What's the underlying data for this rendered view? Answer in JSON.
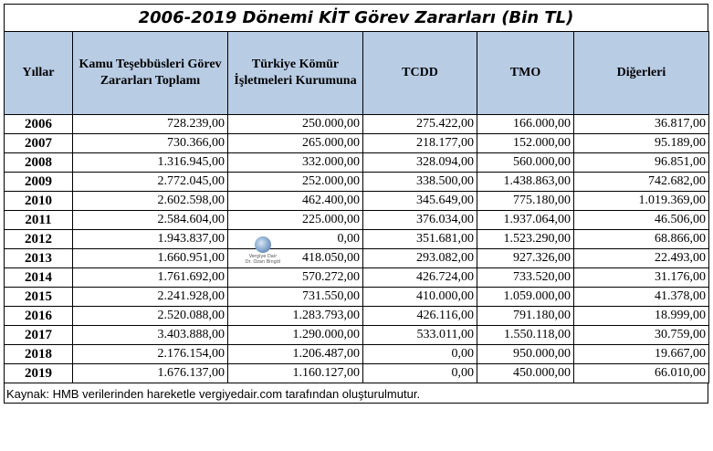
{
  "title": "2006-2019 Dönemi KİT Görev Zararları (Bin TL)",
  "headers": [
    "Yıllar",
    "Kamu Teşebbüsleri Görev Zararları Toplamı",
    "Türkiye Kömür İşletmeleri Kurumuna",
    "TCDD",
    "TMO",
    "Diğerleri"
  ],
  "rows": [
    [
      "2006",
      "728.239,00",
      "250.000,00",
      "275.422,00",
      "166.000,00",
      "36.817,00"
    ],
    [
      "2007",
      "730.366,00",
      "265.000,00",
      "218.177,00",
      "152.000,00",
      "95.189,00"
    ],
    [
      "2008",
      "1.316.945,00",
      "332.000,00",
      "328.094,00",
      "560.000,00",
      "96.851,00"
    ],
    [
      "2009",
      "2.772.045,00",
      "252.000,00",
      "338.500,00",
      "1.438.863,00",
      "742.682,00"
    ],
    [
      "2010",
      "2.602.598,00",
      "462.400,00",
      "345.649,00",
      "775.180,00",
      "1.019.369,00"
    ],
    [
      "2011",
      "2.584.604,00",
      "225.000,00",
      "376.034,00",
      "1.937.064,00",
      "46.506,00"
    ],
    [
      "2012",
      "1.943.837,00",
      "0,00",
      "351.681,00",
      "1.523.290,00",
      "68.866,00"
    ],
    [
      "2013",
      "1.660.951,00",
      "418.050,00",
      "293.082,00",
      "927.326,00",
      "22.493,00"
    ],
    [
      "2014",
      "1.761.692,00",
      "570.272,00",
      "426.724,00",
      "733.520,00",
      "31.176,00"
    ],
    [
      "2015",
      "2.241.928,00",
      "731.550,00",
      "410.000,00",
      "1.059.000,00",
      "41.378,00"
    ],
    [
      "2016",
      "2.520.088,00",
      "1.283.793,00",
      "426.116,00",
      "791.180,00",
      "18.999,00"
    ],
    [
      "2017",
      "3.403.888,00",
      "1.290.000,00",
      "533.011,00",
      "1.550.118,00",
      "30.759,00"
    ],
    [
      "2018",
      "2.176.154,00",
      "1.206.487,00",
      "0,00",
      "950.000,00",
      "19.667,00"
    ],
    [
      "2019",
      "1.676.137,00",
      "1.160.127,00",
      "0,00",
      "450.000,00",
      "66.010,00"
    ]
  ],
  "source": "Kaynak: HMB verilerinden hareketle vergiyedair.com tarafından oluşturulmutur.",
  "watermark": {
    "line1": "Vergiye Dair",
    "line2": "Dr. Ozan Bingöl"
  },
  "colors": {
    "header_bg": "#b8cce4",
    "border": "#000000"
  }
}
